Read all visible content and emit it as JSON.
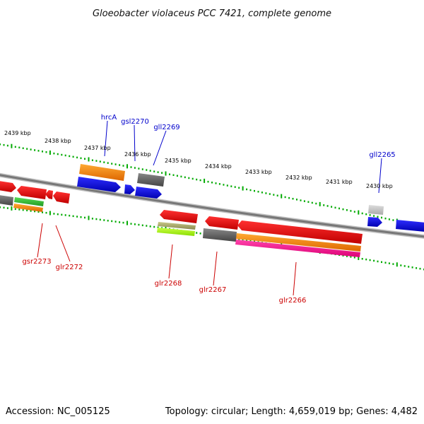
{
  "title": "Gloeobacter violaceus PCC 7421, complete genome",
  "footer": {
    "accession": "Accession: NC_005125",
    "topology": "Topology: circular; Length: 4,659,019 bp; Genes: 4,482"
  },
  "colors": {
    "backbone": "#888888",
    "tick": "#00aa00",
    "forward_label": "#0000cc",
    "reverse_label": "#cc0000"
  },
  "scale": {
    "unit": "kbp",
    "tick_labels": [
      "2439 kbp",
      "2438 kbp",
      "2437 kbp",
      "2436 kbp",
      "2435 kbp",
      "2434 kbp",
      "2433 kbp",
      "2432 kbp",
      "2431 kbp",
      "2430 kbp"
    ]
  },
  "gene_labels": {
    "forward": [
      "hrcA",
      "gsl2270",
      "gll2269",
      "gll2265"
    ],
    "reverse": [
      "gsr2273",
      "glr2272",
      "glr2268",
      "glr2267",
      "glr2266"
    ]
  },
  "feature_colors": {
    "cds_forward": "#0000ee",
    "cds_reverse": "#ee0000",
    "orange": "#ff8800",
    "gray": "#666666",
    "light_gray": "#bbbbbb",
    "green": "#33bb33",
    "lime": "#99ee00",
    "khaki": "#aaaa66",
    "magenta": "#ff1493"
  }
}
